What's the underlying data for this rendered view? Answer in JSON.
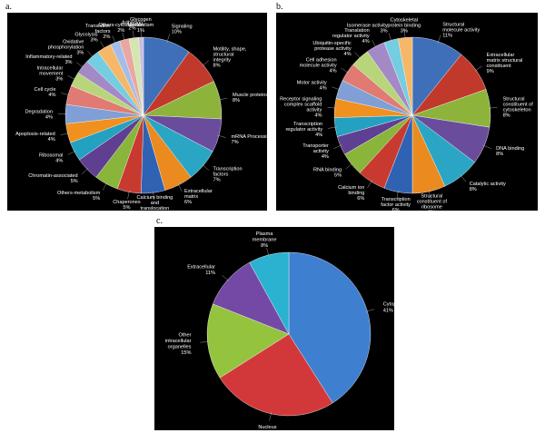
{
  "panels": {
    "a": {
      "letter": "a."
    },
    "b": {
      "letter": "b."
    },
    "c": {
      "letter": "c."
    }
  },
  "chart_data": [
    {
      "type": "pie",
      "panel": "a",
      "title": "",
      "slices": [
        {
          "label": "Signaling",
          "value": 10,
          "pct_text": "10%",
          "color": "#3f6fb8"
        },
        {
          "label": "Motility, shape, structural integrity",
          "value": 8,
          "pct_text": "8%",
          "color": "#c0392b"
        },
        {
          "label": "Muscle proteins",
          "value": 8,
          "pct_text": "8%",
          "color": "#8db33a"
        },
        {
          "label": "mRNA Processing",
          "value": 7,
          "pct_text": "7%",
          "color": "#6a4c9c"
        },
        {
          "label": "Transcription factors",
          "value": 7,
          "pct_text": "7%",
          "color": "#2aa6c4"
        },
        {
          "label": "Extracellular matrix",
          "value": 6,
          "pct_text": "6%",
          "color": "#ea8a1f"
        },
        {
          "label": "Calcium binding and translocation",
          "value": 5,
          "pct_text": "5%",
          "color": "#2f62b3"
        },
        {
          "label": "Chaperones",
          "value": 5,
          "pct_text": "5%",
          "color": "#c83a30"
        },
        {
          "label": "Others-metabolism",
          "value": 5,
          "pct_text": "5%",
          "color": "#88b53a"
        },
        {
          "label": "Chromatin-associated",
          "value": 5,
          "pct_text": "5%",
          "color": "#5f3f92"
        },
        {
          "label": "Ribosomal",
          "value": 4,
          "pct_text": "4%",
          "color": "#24a0c0"
        },
        {
          "label": "Apoptosis-related",
          "value": 4,
          "pct_text": "4%",
          "color": "#f0901f"
        },
        {
          "label": "Degradation",
          "value": 4,
          "pct_text": "4%",
          "color": "#7f9fd6"
        },
        {
          "label": "Cell cycle",
          "value": 4,
          "pct_text": "4%",
          "color": "#e07a72"
        },
        {
          "label": "Intracellular movement",
          "value": 3,
          "pct_text": "3%",
          "color": "#b8d57a"
        },
        {
          "label": "Inflammatory-related",
          "value": 3,
          "pct_text": "3%",
          "color": "#a38ac6"
        },
        {
          "label": "Oxidative phosphorylation",
          "value": 3,
          "pct_text": "3%",
          "color": "#74cde0"
        },
        {
          "label": "Glycolysis",
          "value": 3,
          "pct_text": "3%",
          "color": "#f6b768"
        },
        {
          "label": "Translation factors",
          "value": 2,
          "pct_text": "2%",
          "color": "#a5bde6"
        },
        {
          "label": "Others-cytoskeleton",
          "value": 2,
          "pct_text": "2%",
          "color": "#eaa6a2"
        },
        {
          "label": "Adhesion",
          "value": 2,
          "pct_text": "2%",
          "color": "#d3e6ae"
        },
        {
          "label": "Glycogen Metabolism",
          "value": 1,
          "pct_text": "1%",
          "color": "#c9bde0"
        }
      ]
    },
    {
      "type": "pie",
      "panel": "b",
      "title": "",
      "slices": [
        {
          "label": "Structural molecule activity",
          "value": 11,
          "pct_text": "11%",
          "color": "#3f6fb8"
        },
        {
          "label": "Extracellular matrix structural constituent",
          "value": 9,
          "pct_text": "9%",
          "color": "#c0392b"
        },
        {
          "label": "Structural constituent of cytoskeleton",
          "value": 8,
          "pct_text": "8%",
          "color": "#8db33a"
        },
        {
          "label": "DNA binding",
          "value": 8,
          "pct_text": "8%",
          "color": "#6a4c9c"
        },
        {
          "label": "Catalytic activity",
          "value": 8,
          "pct_text": "8%",
          "color": "#2aa6c4"
        },
        {
          "label": "Structural constituent of ribosome",
          "value": 7,
          "pct_text": "7%",
          "color": "#ea8a1f"
        },
        {
          "label": "Transcription factor activity",
          "value": 6,
          "pct_text": "6%",
          "color": "#2f62b3"
        },
        {
          "label": "Calcium ion binding",
          "value": 6,
          "pct_text": "6%",
          "color": "#c83a30"
        },
        {
          "label": "RNA binding",
          "value": 5,
          "pct_text": "5%",
          "color": "#88b53a"
        },
        {
          "label": "Transporter activity",
          "value": 4,
          "pct_text": "4%",
          "color": "#5f3f92"
        },
        {
          "label": "Transcription regulator activity",
          "value": 4,
          "pct_text": "4%",
          "color": "#24a0c0"
        },
        {
          "label": "Receptor signaling complex scaffold activity",
          "value": 4,
          "pct_text": "4%",
          "color": "#f0901f"
        },
        {
          "label": "Motor activity",
          "value": 4,
          "pct_text": "4%",
          "color": "#7f9fd6"
        },
        {
          "label": "Cell adhesion molecule activity",
          "value": 4,
          "pct_text": "4%",
          "color": "#e07a72"
        },
        {
          "label": "Ubiquitin-specific protease activity",
          "value": 4,
          "pct_text": "4%",
          "color": "#b8d57a"
        },
        {
          "label": "Translation regulator activity",
          "value": 4,
          "pct_text": "4%",
          "color": "#a38ac6"
        },
        {
          "label": "Isomerase activity",
          "value": 3,
          "pct_text": "3%",
          "color": "#74cde0"
        },
        {
          "label": "Cytoskeletal protein binding",
          "value": 3,
          "pct_text": "3%",
          "color": "#f6b768"
        }
      ]
    },
    {
      "type": "pie",
      "panel": "c",
      "title": "",
      "slices": [
        {
          "label": "Cytoplasm",
          "value": 41,
          "pct_text": "41%",
          "color": "#3f7fd0"
        },
        {
          "label": "Nucleus",
          "value": 25,
          "pct_text": "25%",
          "color": "#d2383a"
        },
        {
          "label": "Other intracellular organelles",
          "value": 15,
          "pct_text": "15%",
          "color": "#94c43e"
        },
        {
          "label": "Extracellular",
          "value": 11,
          "pct_text": "11%",
          "color": "#7449a6"
        },
        {
          "label": "Plasma membrane",
          "value": 8,
          "pct_text": "8%",
          "color": "#2ab2d0"
        }
      ]
    }
  ]
}
